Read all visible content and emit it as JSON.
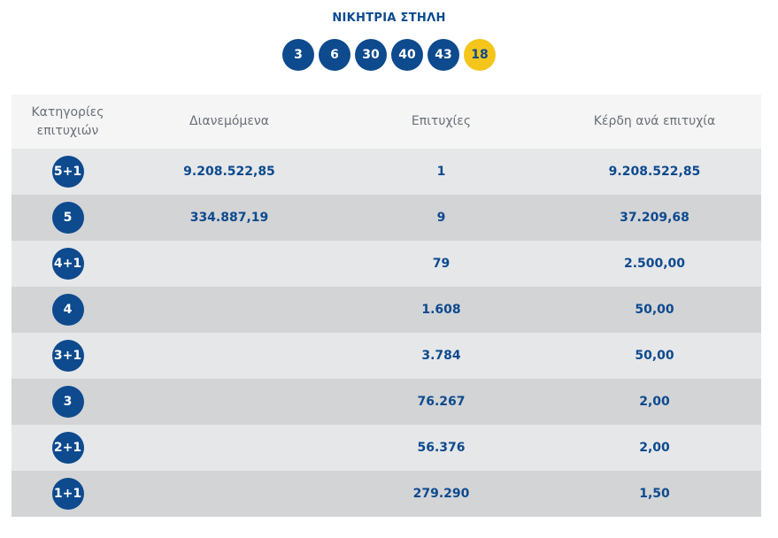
{
  "header": {
    "title": "ΝΙΚΗΤΡΙΑ ΣΤΗΛΗ"
  },
  "winning_numbers": [
    "3",
    "6",
    "30",
    "40",
    "43"
  ],
  "bonus_number": "18",
  "colors": {
    "primary": "#0d4a8e",
    "bonus": "#f4c51a"
  },
  "table": {
    "headers": {
      "category_line1": "Κατηγορίες",
      "category_line2": "επιτυχιών",
      "distributed": "Διανεμόμενα",
      "winners": "Επιτυχίες",
      "prize_per_winner": "Κέρδη ανά επιτυχία"
    },
    "rows": [
      {
        "category": "5+1",
        "distributed": "9.208.522,85",
        "winners": "1",
        "prize": "9.208.522,85"
      },
      {
        "category": "5",
        "distributed": "334.887,19",
        "winners": "9",
        "prize": "37.209,68"
      },
      {
        "category": "4+1",
        "distributed": "",
        "winners": "79",
        "prize": "2.500,00"
      },
      {
        "category": "4",
        "distributed": "",
        "winners": "1.608",
        "prize": "50,00"
      },
      {
        "category": "3+1",
        "distributed": "",
        "winners": "3.784",
        "prize": "50,00"
      },
      {
        "category": "3",
        "distributed": "",
        "winners": "76.267",
        "prize": "2,00"
      },
      {
        "category": "2+1",
        "distributed": "",
        "winners": "56.376",
        "prize": "2,00"
      },
      {
        "category": "1+1",
        "distributed": "",
        "winners": "279.290",
        "prize": "1,50"
      }
    ]
  }
}
